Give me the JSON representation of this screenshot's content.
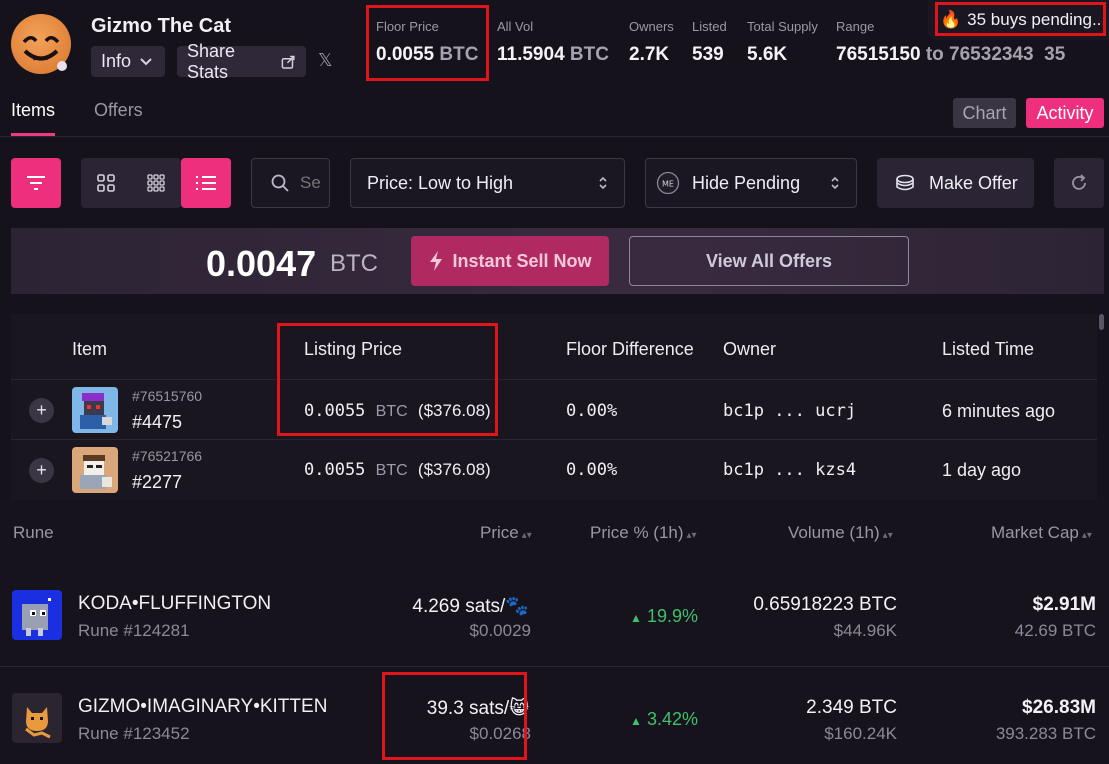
{
  "collection": {
    "name": "Gizmo The Cat",
    "info_label": "Info",
    "share_label": "Share Stats"
  },
  "stats": {
    "floor_price": {
      "label": "Floor Price",
      "value": "0.0055",
      "unit": "BTC"
    },
    "all_vol": {
      "label": "All Vol",
      "value": "11.5904",
      "unit": "BTC"
    },
    "owners": {
      "label": "Owners",
      "value": "2.7K"
    },
    "listed": {
      "label": "Listed",
      "value": "539"
    },
    "total_supply": {
      "label": "Total Supply",
      "value": "5.6K"
    },
    "range": {
      "label": "Range",
      "from": "76515150",
      "to_word": "to",
      "to": "76532343",
      "extra": "35"
    }
  },
  "pending": {
    "text": "35 buys pending..."
  },
  "tabs": {
    "items": "Items",
    "offers": "Offers",
    "chart": "Chart",
    "activity": "Activity"
  },
  "toolbar": {
    "search_placeholder": "Search",
    "sort_label": "Price: Low to High",
    "pending_toggle": "Hide Pending",
    "make_offer": "Make Offer"
  },
  "sell": {
    "price": "0.0047",
    "unit": "BTC",
    "instant_label": "Instant Sell Now",
    "view_all_label": "View All Offers"
  },
  "listing_table": {
    "headers": [
      "Item",
      "Listing Price",
      "Floor Difference",
      "Owner",
      "Listed Time"
    ],
    "rows": [
      {
        "inscription": "#76515760",
        "number": "#4475",
        "price": "0.0055",
        "unit": "BTC",
        "usd": "($376.08)",
        "floor_diff": "0.00%",
        "owner_prefix": "bc1p",
        "owner_suffix": "ucrj",
        "time": "6 minutes ago"
      },
      {
        "inscription": "#76521766",
        "number": "#2277",
        "price": "0.0055",
        "unit": "BTC",
        "usd": "($376.08)",
        "floor_diff": "0.00%",
        "owner_prefix": "bc1p",
        "owner_suffix": "kzs4",
        "time": "1 day ago"
      }
    ]
  },
  "rune_table": {
    "headers": [
      "Rune",
      "Price",
      "Price % (1h)",
      "Volume (1h)",
      "Market Cap"
    ],
    "rows": [
      {
        "name": "KODA•FLUFFINGTON",
        "id": "Rune #124281",
        "price": "4.269 sats/",
        "price_emoji": "🐾",
        "price_usd": "$0.0029",
        "change": "19.9%",
        "volume": "0.65918223 BTC",
        "volume_usd": "$44.96K",
        "mcap": "$2.91M",
        "mcap_btc": "42.69 BTC"
      },
      {
        "name": "GIZMO•IMAGINARY•KITTEN",
        "id": "Rune #123452",
        "price": "39.3 sats/",
        "price_emoji": "😸",
        "price_usd": "$0.0268",
        "change": "3.42%",
        "volume": "2.349 BTC",
        "volume_usd": "$160.24K",
        "mcap": "$26.83M",
        "mcap_btc": "393.283 BTC"
      }
    ]
  },
  "colors": {
    "accent": "#ee2f7d",
    "highlight_box": "#e0141b",
    "positive": "#3fc16a"
  }
}
